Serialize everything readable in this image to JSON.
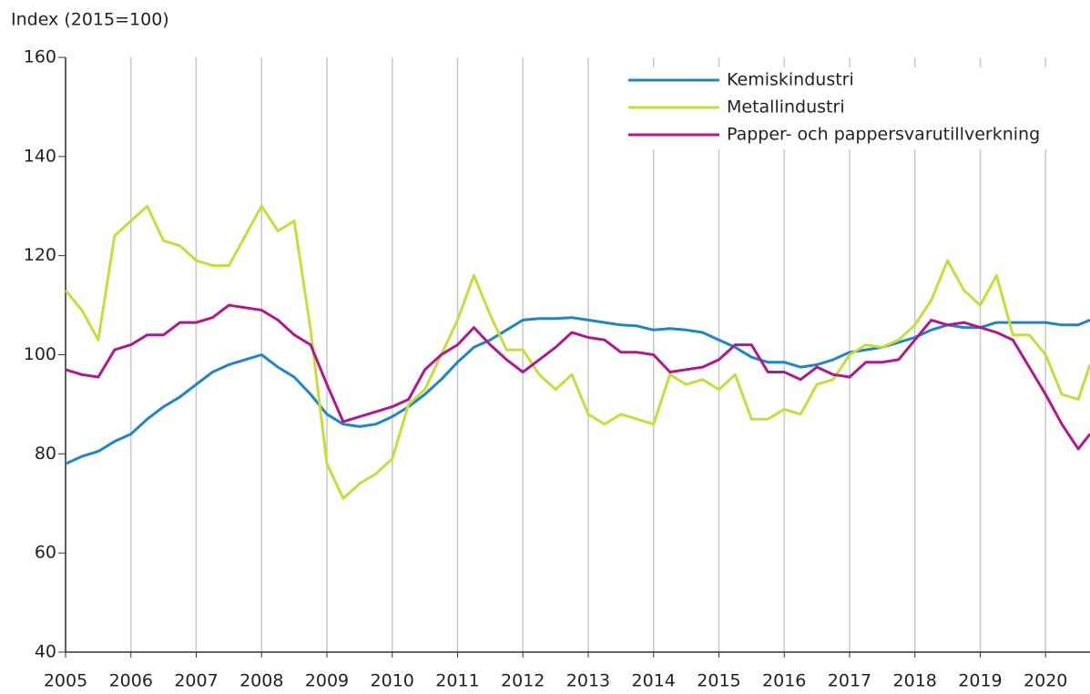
{
  "chart_data": {
    "type": "line",
    "y_label": "Index (2015=100)",
    "x": [
      2005,
      2005.25,
      2005.5,
      2005.75,
      2006,
      2006.25,
      2006.5,
      2006.75,
      2007,
      2007.25,
      2007.5,
      2007.75,
      2008,
      2008.25,
      2008.5,
      2008.75,
      2009,
      2009.25,
      2009.5,
      2009.75,
      2010,
      2010.25,
      2010.5,
      2010.75,
      2011,
      2011.25,
      2011.5,
      2011.75,
      2012,
      2012.25,
      2012.5,
      2012.75,
      2013,
      2013.25,
      2013.5,
      2013.75,
      2014,
      2014.25,
      2014.5,
      2014.75,
      2015,
      2015.25,
      2015.5,
      2015.75,
      2016,
      2016.25,
      2016.5,
      2016.75,
      2017,
      2017.25,
      2017.5,
      2017.75,
      2018,
      2018.25,
      2018.5,
      2018.75,
      2019,
      2019.25,
      2019.5,
      2019.75,
      2020,
      2020.25,
      2020.5,
      2020.68
    ],
    "series": [
      {
        "name": "Kemiskindustri",
        "color": "#1f86c5",
        "values": [
          78,
          79.5,
          80.5,
          82.5,
          84,
          87,
          89.5,
          91.5,
          94,
          96.5,
          98,
          99,
          100,
          97.5,
          95.5,
          92,
          88,
          86,
          85.5,
          86,
          87.5,
          89.5,
          92,
          95,
          98.5,
          101.5,
          103,
          105,
          107,
          107.3,
          107.3,
          107.5,
          107,
          106.5,
          106,
          105.8,
          105,
          105.3,
          105,
          104.5,
          103,
          101.5,
          99.5,
          98.5,
          98.5,
          97.5,
          98,
          99,
          100.5,
          101,
          101.5,
          102.5,
          103.5,
          105,
          106,
          105.5,
          105.5,
          106.5,
          106.5,
          106.5,
          106.5,
          106,
          106,
          107
        ]
      },
      {
        "name": "Metallindustri",
        "color": "#c6dd3a",
        "values": [
          113,
          109,
          103,
          124,
          127,
          130,
          123,
          122,
          119,
          118,
          118,
          124,
          130,
          125,
          127,
          105,
          78,
          71,
          74,
          76,
          79,
          90,
          93,
          100,
          107,
          116,
          108,
          101,
          101,
          96,
          93,
          96,
          88,
          86,
          88,
          87,
          86,
          96,
          94,
          95,
          93,
          96,
          87,
          87,
          89,
          88,
          94,
          95,
          100,
          102,
          101.5,
          103,
          106,
          111,
          119,
          113,
          110,
          116,
          104,
          104,
          100,
          92,
          91,
          98
        ]
      },
      {
        "name": "Papper- och pappersvarutillverkning",
        "color": "#b0188e",
        "values": [
          97,
          96,
          95.5,
          101,
          102,
          104,
          104,
          106.5,
          106.5,
          107.5,
          110,
          109.5,
          109,
          107,
          104,
          102,
          94,
          86.5,
          87.5,
          88.5,
          89.5,
          91,
          97,
          100,
          102,
          105.5,
          102,
          99,
          96.5,
          99,
          101.5,
          104.5,
          103.5,
          103,
          100.5,
          100.5,
          100,
          96.5,
          97,
          97.5,
          99,
          102,
          102,
          96.5,
          96.5,
          95,
          97.5,
          96,
          95.5,
          98.5,
          98.5,
          99,
          103,
          107,
          106,
          106.5,
          105.5,
          104.5,
          103,
          97.5,
          92,
          86,
          81,
          84
        ]
      }
    ],
    "xlim": [
      2005,
      2020.68
    ],
    "ylim": [
      40,
      160
    ],
    "xticks": [
      2005,
      2006,
      2007,
      2008,
      2009,
      2010,
      2011,
      2012,
      2013,
      2014,
      2015,
      2016,
      2017,
      2018,
      2019,
      2020
    ],
    "yticks": [
      40,
      60,
      80,
      100,
      120,
      140,
      160
    ],
    "x_grid": true,
    "legend": "upper right"
  }
}
